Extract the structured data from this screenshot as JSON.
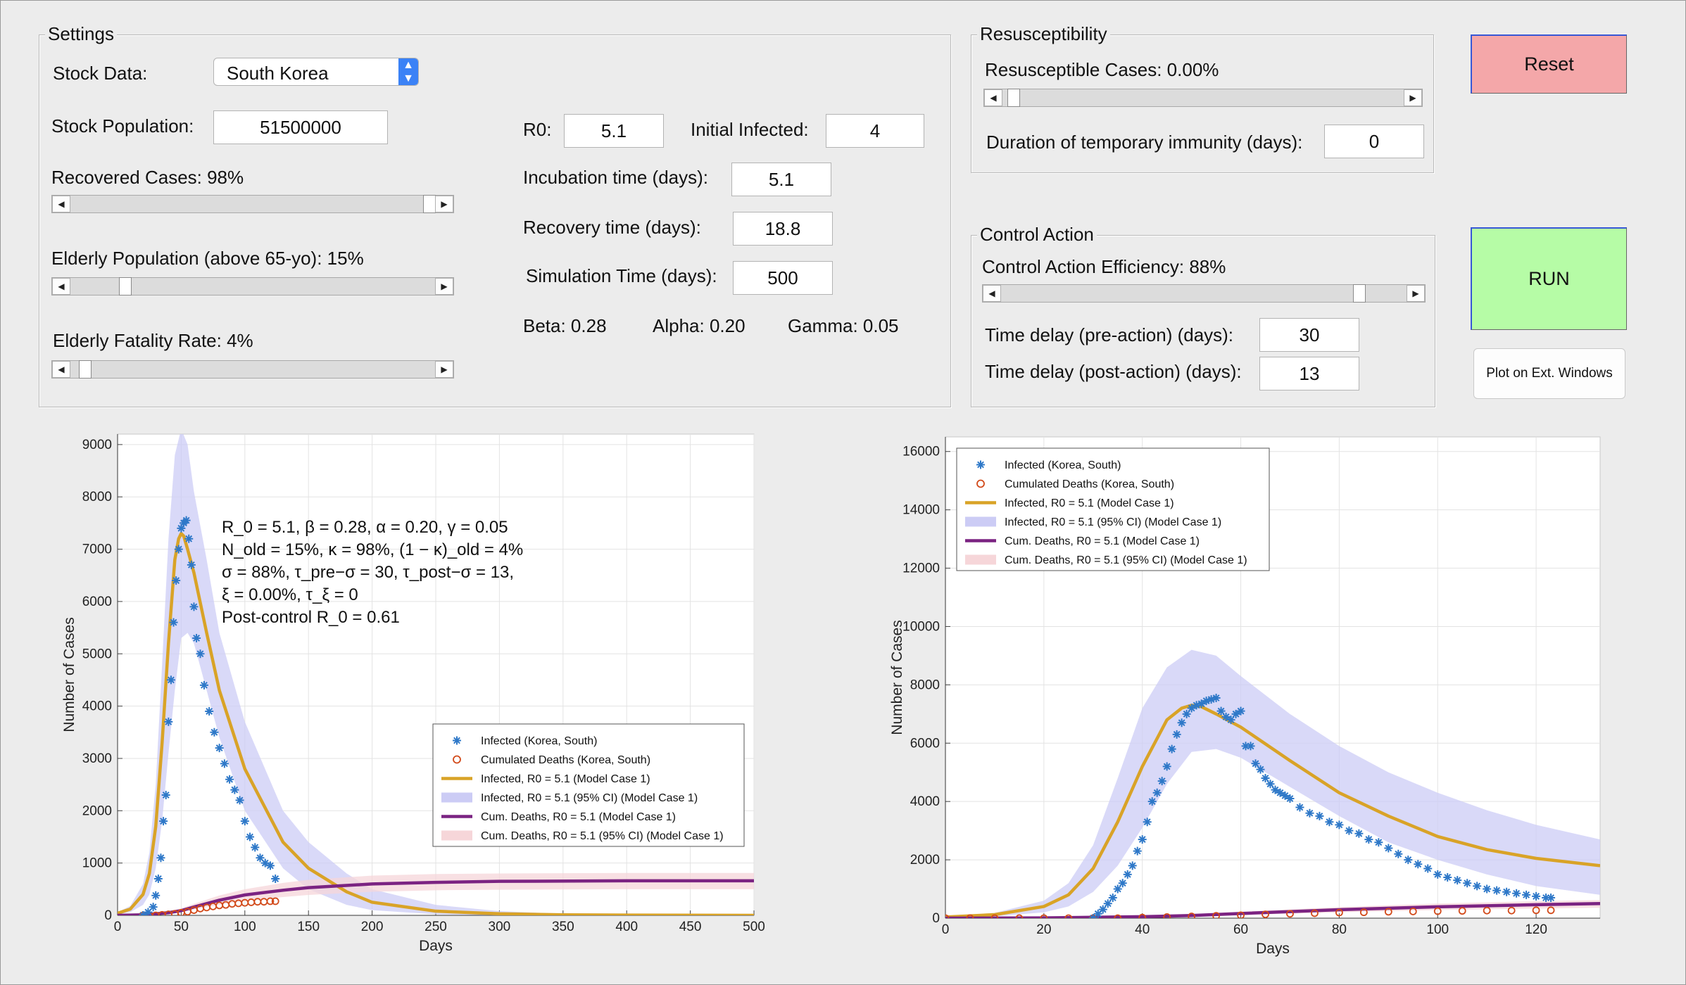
{
  "settings": {
    "title": "Settings",
    "stock_data_label": "Stock Data:",
    "stock_data_value": "South Korea",
    "stock_population_label": "Stock Population:",
    "stock_population_value": "51500000",
    "recovered_label": "Recovered Cases: 98%",
    "recovered_value": 0.98,
    "elderly_pop_label": "Elderly Population (above 65-yo): 15%",
    "elderly_pop_value": 0.15,
    "elderly_fatality_label": "Elderly Fatality Rate: 4%",
    "elderly_fatality_value": 0.04,
    "r0_label": "R0:",
    "r0_value": "5.1",
    "initial_infected_label": "Initial Infected:",
    "initial_infected_value": "4",
    "incubation_label": "Incubation time (days):",
    "incubation_value": "5.1",
    "recovery_label": "Recovery time (days):",
    "recovery_value": "18.8",
    "simulation_label": "Simulation Time (days):",
    "simulation_value": "500",
    "beta_text": "Beta:  0.28",
    "alpha_text": "Alpha: 0.20",
    "gamma_text": "Gamma:  0.05"
  },
  "resusceptibility": {
    "title": "Resusceptibility",
    "cases_label": "Resusceptible Cases: 0.00%",
    "cases_value": 0.0,
    "duration_label": "Duration of temporary immunity (days):",
    "duration_value": "0"
  },
  "control_action": {
    "title": "Control Action",
    "efficiency_label": "Control Action Efficiency: 88%",
    "efficiency_value": 0.88,
    "pre_label": "Time delay (pre-action) (days):",
    "pre_value": "30",
    "post_label": "Time delay (post-action) (days):",
    "post_value": "13"
  },
  "buttons": {
    "reset": "Reset",
    "run": "RUN",
    "ext": "Plot on Ext. Windows"
  },
  "colors": {
    "infected_marker": "#2e78c8",
    "deaths_marker": "#d24a1a",
    "infected_model": "#d9a327",
    "infected_ci": "#ccccf5",
    "deaths_model": "#7b2382",
    "deaths_ci": "#f6d6d9"
  },
  "chart_data": [
    {
      "type": "line",
      "xlabel": "Days",
      "ylabel": "Number of Cases",
      "xlim": [
        0,
        500
      ],
      "ylim": [
        0,
        9200
      ],
      "xticks": [
        "0",
        "50",
        "100",
        "150",
        "200",
        "250",
        "300",
        "350",
        "400",
        "450",
        "500"
      ],
      "yticks": [
        "0",
        "1000",
        "2000",
        "3000",
        "4000",
        "5000",
        "6000",
        "7000",
        "8000",
        "9000"
      ],
      "grid": true,
      "legend_position": "center-right",
      "annotations": [
        "R_0 = 5.1, β = 0.28, α = 0.20, γ = 0.05",
        "N_old = 15%, κ = 98%, (1 − κ)_old = 4%",
        "σ = 88%, τ_pre−σ = 30, τ_post−σ = 13,",
        "ξ = 0.00%, τ_ξ = 0",
        "Post-control R_0 = 0.61"
      ],
      "legend": [
        "Infected (Korea, South)",
        "Cumulated Deaths (Korea, South)",
        "Infected, R0 = 5.1 (Model Case 1)",
        "Infected, R0 = 5.1 (95% CI) (Model Case 1)",
        "Cum. Deaths, R0 = 5.1 (Model Case 1)",
        "Cum. Deaths, R0 = 5.1 (95% CI) (Model Case 1)"
      ],
      "series": [
        {
          "name": "Infected (Korea, South)",
          "kind": "markers-star",
          "x": [
            20,
            24,
            28,
            30,
            32,
            34,
            36,
            38,
            40,
            42,
            44,
            46,
            48,
            50,
            52,
            54,
            56,
            58,
            60,
            62,
            65,
            68,
            72,
            76,
            80,
            84,
            88,
            92,
            96,
            100,
            104,
            108,
            112,
            116,
            120,
            124
          ],
          "y": [
            0,
            60,
            160,
            380,
            700,
            1100,
            1800,
            2300,
            3700,
            4500,
            5600,
            6400,
            7000,
            7400,
            7500,
            7550,
            7200,
            6700,
            5900,
            5300,
            5000,
            4400,
            3900,
            3500,
            3200,
            2900,
            2600,
            2400,
            2200,
            1800,
            1500,
            1300,
            1100,
            1000,
            950,
            700
          ]
        },
        {
          "name": "Cumulated Deaths (Korea, South)",
          "kind": "markers-circle",
          "x": [
            20,
            25,
            30,
            35,
            40,
            45,
            50,
            55,
            60,
            65,
            70,
            75,
            80,
            85,
            90,
            95,
            100,
            105,
            110,
            115,
            120,
            124
          ],
          "y": [
            0,
            0,
            0,
            10,
            20,
            30,
            50,
            70,
            100,
            130,
            150,
            170,
            190,
            200,
            220,
            230,
            240,
            250,
            260,
            260,
            270,
            270
          ]
        },
        {
          "name": "Infected, R0 = 5.1 (Model Case 1)",
          "kind": "line",
          "x": [
            0,
            10,
            20,
            25,
            30,
            35,
            40,
            45,
            48,
            50,
            52,
            55,
            60,
            70,
            80,
            100,
            130,
            150,
            180,
            200,
            250,
            300,
            350,
            400,
            500
          ],
          "y": [
            40,
            120,
            400,
            800,
            1700,
            3300,
            5200,
            6800,
            7200,
            7300,
            7250,
            7000,
            6550,
            5400,
            4300,
            2800,
            1400,
            900,
            450,
            250,
            80,
            30,
            10,
            5,
            0
          ]
        },
        {
          "name": "Infected, R0 = 5.1 (95% CI) (Model Case 1)",
          "kind": "band",
          "x": [
            0,
            10,
            20,
            25,
            30,
            35,
            40,
            45,
            50,
            55,
            60,
            70,
            80,
            100,
            130,
            150,
            180,
            200,
            250,
            300,
            350,
            400,
            500
          ],
          "low": [
            20,
            60,
            200,
            400,
            900,
            1800,
            3100,
            4300,
            5300,
            5400,
            5200,
            4300,
            3400,
            2000,
            900,
            500,
            200,
            100,
            20,
            0,
            0,
            0,
            0
          ],
          "high": [
            60,
            180,
            600,
            1200,
            2500,
            4800,
            7200,
            8800,
            9300,
            9000,
            8100,
            6800,
            5400,
            3700,
            2000,
            1400,
            800,
            500,
            200,
            80,
            30,
            10,
            0
          ]
        },
        {
          "name": "Cum. Deaths, R0 = 5.1 (Model Case 1)",
          "kind": "line",
          "x": [
            0,
            20,
            40,
            50,
            60,
            80,
            100,
            130,
            150,
            200,
            250,
            300,
            400,
            500
          ],
          "y": [
            0,
            10,
            50,
            90,
            160,
            290,
            390,
            480,
            530,
            600,
            630,
            650,
            660,
            660
          ]
        },
        {
          "name": "Cum. Deaths, R0 = 5.1 (95% CI) (Model Case 1)",
          "kind": "band",
          "x": [
            0,
            20,
            40,
            50,
            60,
            80,
            100,
            130,
            150,
            200,
            250,
            300,
            400,
            500
          ],
          "low": [
            0,
            5,
            30,
            60,
            110,
            200,
            280,
            350,
            390,
            450,
            480,
            490,
            500,
            500
          ],
          "high": [
            0,
            20,
            80,
            130,
            220,
            380,
            500,
            620,
            680,
            760,
            790,
            800,
            810,
            810
          ]
        }
      ]
    },
    {
      "type": "line",
      "xlabel": "Days",
      "ylabel": "Number of Cases",
      "xlim": [
        0,
        133
      ],
      "ylim": [
        0,
        16500
      ],
      "xticks": [
        "0",
        "20",
        "40",
        "60",
        "80",
        "100",
        "120"
      ],
      "yticks": [
        "0",
        "2000",
        "4000",
        "6000",
        "8000",
        "10000",
        "12000",
        "14000",
        "16000"
      ],
      "grid": true,
      "legend_position": "top-left",
      "legend": [
        "Infected (Korea, South)",
        "Cumulated Deaths (Korea, South)",
        "Infected, R0 = 5.1 (Model Case 1)",
        "Infected, R0 = 5.1 (95% CI) (Model Case 1)",
        "Cum. Deaths, R0 = 5.1 (Model Case 1)",
        "Cum. Deaths, R0 = 5.1 (95% CI) (Model Case 1)"
      ],
      "series": [
        {
          "name": "Infected (Korea, South)",
          "kind": "markers-star",
          "x": [
            30,
            31,
            32,
            33,
            34,
            35,
            36,
            37,
            38,
            39,
            40,
            41,
            42,
            43,
            44,
            45,
            46,
            47,
            48,
            49,
            50,
            51,
            52,
            53,
            54,
            55,
            56,
            57,
            58,
            59,
            60,
            61,
            62,
            63,
            64,
            65,
            66,
            67,
            68,
            69,
            70,
            72,
            74,
            76,
            78,
            80,
            82,
            84,
            86,
            88,
            90,
            92,
            94,
            96,
            98,
            100,
            102,
            104,
            106,
            108,
            110,
            112,
            114,
            116,
            118,
            120,
            122,
            123
          ],
          "y": [
            0,
            150,
            300,
            500,
            700,
            1000,
            1200,
            1500,
            1800,
            2300,
            2700,
            3300,
            4000,
            4300,
            4700,
            5200,
            5800,
            6300,
            6700,
            7000,
            7200,
            7300,
            7350,
            7450,
            7500,
            7550,
            7100,
            6900,
            6800,
            7000,
            7100,
            5900,
            5900,
            5300,
            5100,
            4800,
            4600,
            4400,
            4300,
            4200,
            4100,
            3800,
            3600,
            3500,
            3300,
            3200,
            3000,
            2900,
            2700,
            2600,
            2400,
            2200,
            2000,
            1850,
            1700,
            1500,
            1400,
            1300,
            1200,
            1100,
            1000,
            950,
            900,
            850,
            800,
            750,
            700,
            700
          ]
        },
        {
          "name": "Cumulated Deaths (Korea, South)",
          "kind": "markers-circle",
          "x": [
            0,
            5,
            10,
            15,
            20,
            25,
            30,
            35,
            40,
            45,
            50,
            55,
            60,
            65,
            70,
            75,
            80,
            85,
            90,
            95,
            100,
            105,
            110,
            115,
            120,
            123
          ],
          "y": [
            0,
            0,
            0,
            0,
            0,
            0,
            0,
            0,
            20,
            40,
            60,
            80,
            100,
            130,
            150,
            170,
            190,
            200,
            220,
            230,
            240,
            250,
            260,
            260,
            270,
            270
          ]
        },
        {
          "name": "Infected, R0 = 5.1 (Model Case 1)",
          "kind": "line",
          "x": [
            0,
            10,
            20,
            25,
            30,
            35,
            40,
            45,
            48,
            50,
            52,
            55,
            60,
            70,
            80,
            90,
            100,
            110,
            120,
            133
          ],
          "y": [
            40,
            120,
            400,
            800,
            1700,
            3300,
            5200,
            6800,
            7200,
            7300,
            7250,
            7000,
            6550,
            5400,
            4300,
            3500,
            2800,
            2350,
            2050,
            1800
          ]
        },
        {
          "name": "Infected, R0 = 5.1 (95% CI) (Model Case 1)",
          "kind": "band",
          "x": [
            0,
            10,
            20,
            25,
            30,
            35,
            40,
            45,
            50,
            55,
            60,
            70,
            80,
            90,
            100,
            110,
            120,
            133
          ],
          "low": [
            20,
            60,
            200,
            400,
            900,
            1800,
            3100,
            4600,
            5700,
            5800,
            5500,
            4500,
            3500,
            2600,
            2000,
            1500,
            1100,
            800
          ],
          "high": [
            60,
            180,
            600,
            1200,
            2500,
            4800,
            7200,
            8600,
            9200,
            9000,
            8300,
            7000,
            5900,
            5000,
            4300,
            3700,
            3200,
            2700
          ]
        },
        {
          "name": "Cum. Deaths, R0 = 5.1 (Model Case 1)",
          "kind": "line",
          "x": [
            0,
            20,
            40,
            50,
            60,
            80,
            100,
            120,
            133
          ],
          "y": [
            0,
            10,
            50,
            90,
            160,
            290,
            390,
            460,
            500
          ]
        },
        {
          "name": "Cum. Deaths, R0 = 5.1 (95% CI) (Model Case 1)",
          "kind": "band",
          "x": [
            0,
            20,
            40,
            50,
            60,
            80,
            100,
            120,
            133
          ],
          "low": [
            0,
            5,
            30,
            60,
            110,
            200,
            280,
            330,
            360
          ],
          "high": [
            0,
            20,
            80,
            130,
            220,
            380,
            500,
            580,
            620
          ]
        }
      ]
    }
  ]
}
